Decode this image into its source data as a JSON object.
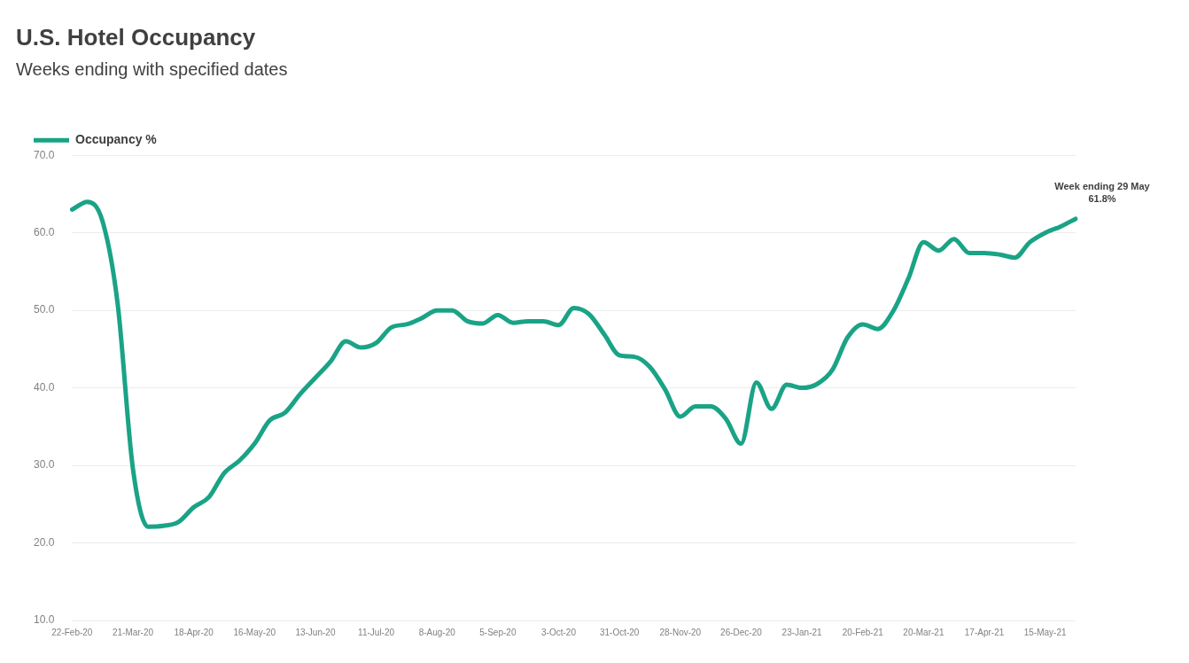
{
  "chart_data": {
    "type": "line",
    "title": "U.S. Hotel Occupancy",
    "subtitle": "Weeks ending with specified dates",
    "categories": [
      "22-Feb-20",
      null,
      null,
      null,
      "21-Mar-20",
      null,
      null,
      null,
      "18-Apr-20",
      null,
      null,
      null,
      "16-May-20",
      null,
      null,
      null,
      "13-Jun-20",
      null,
      null,
      null,
      "11-Jul-20",
      null,
      null,
      null,
      "8-Aug-20",
      null,
      null,
      null,
      "5-Sep-20",
      null,
      null,
      null,
      "3-Oct-20",
      null,
      null,
      null,
      "31-Oct-20",
      null,
      null,
      null,
      "28-Nov-20",
      null,
      null,
      null,
      "26-Dec-20",
      null,
      null,
      null,
      "23-Jan-21",
      null,
      null,
      null,
      "20-Feb-21",
      null,
      null,
      null,
      "20-Mar-21",
      null,
      null,
      null,
      "17-Apr-21",
      null,
      null,
      null,
      "15-May-21",
      null,
      null
    ],
    "series": [
      {
        "name": "Occupancy %",
        "color": "#1aa386",
        "values": [
          63.0,
          64.0,
          61.5,
          50.8,
          29.6,
          22.1,
          22.2,
          22.7,
          24.6,
          25.9,
          29.0,
          30.6,
          32.8,
          35.8,
          36.8,
          39.2,
          41.3,
          43.4,
          46.0,
          45.2,
          45.8,
          47.8,
          48.2,
          49.0,
          50.0,
          50.0,
          48.6,
          48.3,
          49.4,
          48.4,
          48.6,
          48.6,
          48.1,
          50.3,
          49.5,
          46.9,
          44.2,
          44.0,
          42.7,
          39.8,
          36.3,
          37.6,
          37.6,
          36.0,
          32.8,
          40.7,
          37.3,
          40.4,
          40.0,
          40.5,
          42.3,
          46.5,
          48.2,
          47.6,
          49.9,
          54.1,
          58.8,
          57.7,
          59.2,
          57.4,
          57.4,
          57.2,
          56.8,
          58.8,
          60.0,
          60.8,
          61.8
        ]
      }
    ],
    "ylim": [
      10,
      70
    ],
    "yticks": [
      {
        "value": 10,
        "label": "10.0"
      },
      {
        "value": 20,
        "label": "20.0"
      },
      {
        "value": 30,
        "label": "30.0"
      },
      {
        "value": 40,
        "label": "40.0"
      },
      {
        "value": 50,
        "label": "50.0"
      },
      {
        "value": 60,
        "label": "60.0"
      },
      {
        "value": 70,
        "label": "70.0"
      }
    ],
    "grid": "y",
    "legend": "top left",
    "marker": "none",
    "line_style": "solid",
    "annotations": [
      "Week ending 29 May\n61.8%"
    ]
  }
}
